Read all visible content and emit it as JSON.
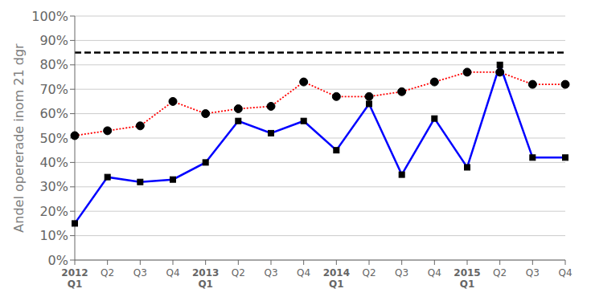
{
  "chart_data": {
    "type": "line",
    "ylabel": "Andel opererade inom 21 dgr",
    "categories": [
      "2012\nQ1",
      "Q2",
      "Q3",
      "Q4",
      "2013\nQ1",
      "Q2",
      "Q3",
      "Q4",
      "2014\nQ1",
      "Q2",
      "Q3",
      "Q4",
      "2015\nQ1",
      "Q2",
      "Q3",
      "Q4"
    ],
    "series": [
      {
        "color": "#0000ff",
        "marker": "square",
        "line_style": "solid",
        "values": [
          15,
          34,
          32,
          33,
          40,
          57,
          52,
          57,
          45,
          64,
          35,
          58,
          38,
          80,
          42,
          42
        ]
      },
      {
        "color": "#ff0000",
        "marker": "circle",
        "line_style": "dotted",
        "values": [
          51,
          53,
          55,
          65,
          60,
          62,
          63,
          73,
          67,
          67,
          69,
          73,
          77,
          77,
          72,
          72
        ]
      }
    ],
    "target_line": {
      "value": 85,
      "color": "#000000",
      "line_style": "dashed"
    },
    "ylim": [
      0,
      100
    ],
    "yticks": [
      {
        "value": 0,
        "label": "0%"
      },
      {
        "value": 10,
        "label": "10%"
      },
      {
        "value": 20,
        "label": "20%"
      },
      {
        "value": 30,
        "label": "30%"
      },
      {
        "value": 40,
        "label": "40%"
      },
      {
        "value": 50,
        "label": "50%"
      },
      {
        "value": 60,
        "label": "60%"
      },
      {
        "value": 70,
        "label": "70%"
      },
      {
        "value": 80,
        "label": "80%"
      },
      {
        "value": 90,
        "label": "90%"
      },
      {
        "value": 100,
        "label": "100%"
      }
    ],
    "grid": true
  }
}
